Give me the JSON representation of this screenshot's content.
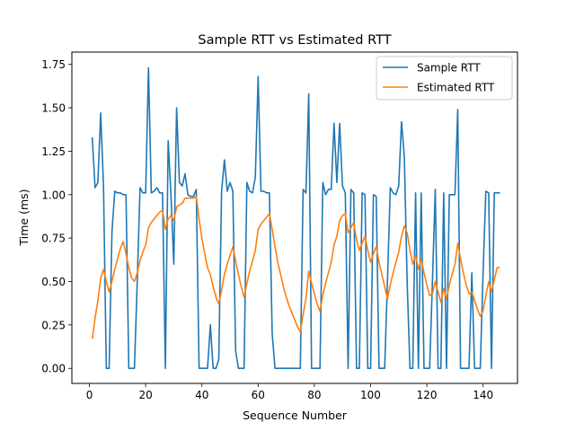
{
  "chart_data": {
    "type": "line",
    "title": "Sample RTT vs Estimated RTT",
    "xlabel": "Sequence Number",
    "ylabel": "Time (ms)",
    "xlim": [
      -6.25,
      152.25
    ],
    "ylim": [
      -0.0867,
      1.8207
    ],
    "xticks": [
      0,
      20,
      40,
      60,
      80,
      100,
      120,
      140
    ],
    "yticks": [
      0.0,
      0.25,
      0.5,
      0.75,
      1.0,
      1.25,
      1.5,
      1.75
    ],
    "ytick_labels": [
      "0.00",
      "0.25",
      "0.50",
      "0.75",
      "1.00",
      "1.25",
      "1.50",
      "1.75"
    ],
    "grid": false,
    "legend_position": "top-right",
    "x": [
      1,
      2,
      3,
      4,
      5,
      6,
      7,
      8,
      9,
      10,
      11,
      12,
      13,
      14,
      15,
      16,
      17,
      18,
      19,
      20,
      21,
      22,
      23,
      24,
      25,
      26,
      27,
      28,
      29,
      30,
      31,
      32,
      33,
      34,
      35,
      36,
      37,
      38,
      39,
      40,
      41,
      42,
      43,
      44,
      45,
      46,
      47,
      48,
      49,
      50,
      51,
      52,
      53,
      54,
      55,
      56,
      57,
      58,
      59,
      60,
      61,
      62,
      63,
      64,
      65,
      66,
      67,
      68,
      69,
      70,
      71,
      72,
      73,
      74,
      75,
      76,
      77,
      78,
      79,
      80,
      81,
      82,
      83,
      84,
      85,
      86,
      87,
      88,
      89,
      90,
      91,
      92,
      93,
      94,
      95,
      96,
      97,
      98,
      99,
      100,
      101,
      102,
      103,
      104,
      105,
      106,
      107,
      108,
      109,
      110,
      111,
      112,
      113,
      114,
      115,
      116,
      117,
      118,
      119,
      120,
      121,
      122,
      123,
      124,
      125,
      126,
      127,
      128,
      129,
      130,
      131,
      132,
      133,
      134,
      135,
      136,
      137,
      138,
      139,
      140,
      141,
      142,
      143,
      144,
      145,
      146
    ],
    "series": [
      {
        "name": "Sample RTT",
        "color": "#1f77b4",
        "values": [
          1.33,
          1.04,
          1.07,
          1.47,
          1.05,
          0.0,
          0.0,
          0.78,
          1.02,
          1.01,
          1.01,
          1.0,
          1.0,
          0.0,
          0.0,
          0.0,
          0.5,
          1.04,
          1.01,
          1.01,
          1.73,
          1.01,
          1.02,
          1.04,
          1.01,
          1.01,
          0.0,
          1.31,
          1.0,
          0.6,
          1.5,
          1.07,
          1.05,
          1.12,
          1.0,
          0.99,
          0.99,
          1.03,
          0.0,
          0.0,
          0.0,
          0.0,
          0.25,
          0.0,
          0.0,
          0.05,
          1.02,
          1.2,
          1.02,
          1.07,
          1.02,
          0.1,
          0.0,
          0.0,
          0.0,
          1.07,
          1.02,
          1.01,
          1.1,
          1.68,
          1.02,
          1.02,
          1.01,
          1.01,
          0.2,
          0.0,
          0.0,
          0.0,
          0.0,
          0.0,
          0.0,
          0.0,
          0.0,
          0.0,
          0.0,
          1.03,
          1.01,
          1.58,
          0.0,
          0.0,
          0.0,
          0.0,
          1.07,
          1.0,
          1.03,
          1.03,
          1.41,
          1.07,
          1.41,
          1.05,
          1.01,
          0.0,
          1.03,
          1.01,
          0.0,
          0.0,
          1.01,
          1.0,
          0.0,
          0.0,
          1.0,
          0.99,
          0.0,
          0.0,
          0.0,
          0.5,
          1.04,
          1.01,
          1.0,
          1.05,
          1.42,
          1.22,
          0.5,
          0.0,
          0.0,
          1.01,
          0.0,
          1.01,
          0.0,
          0.0,
          0.0,
          0.5,
          1.03,
          0.0,
          0.0,
          1.01,
          0.0,
          1.0,
          1.0,
          1.0,
          1.49,
          0.0,
          0.0,
          0.0,
          0.0,
          0.55,
          0.0,
          0.0,
          0.0,
          0.55,
          1.02,
          1.01,
          0.0,
          1.01,
          1.01,
          1.01
        ]
      },
      {
        "name": "Estimated RTT",
        "color": "#ff7f0e",
        "values": [
          0.17,
          0.29,
          0.39,
          0.52,
          0.57,
          0.5,
          0.44,
          0.5,
          0.57,
          0.63,
          0.69,
          0.73,
          0.66,
          0.58,
          0.52,
          0.5,
          0.55,
          0.62,
          0.67,
          0.71,
          0.81,
          0.84,
          0.86,
          0.88,
          0.9,
          0.91,
          0.8,
          0.86,
          0.88,
          0.85,
          0.93,
          0.94,
          0.95,
          0.98,
          0.98,
          0.98,
          0.98,
          0.99,
          0.86,
          0.75,
          0.66,
          0.58,
          0.54,
          0.47,
          0.41,
          0.37,
          0.45,
          0.54,
          0.6,
          0.65,
          0.7,
          0.62,
          0.54,
          0.47,
          0.41,
          0.49,
          0.56,
          0.62,
          0.68,
          0.8,
          0.83,
          0.85,
          0.87,
          0.89,
          0.8,
          0.7,
          0.61,
          0.54,
          0.47,
          0.41,
          0.36,
          0.32,
          0.28,
          0.24,
          0.21,
          0.31,
          0.4,
          0.56,
          0.49,
          0.43,
          0.37,
          0.33,
          0.42,
          0.49,
          0.55,
          0.61,
          0.71,
          0.76,
          0.85,
          0.88,
          0.89,
          0.78,
          0.81,
          0.84,
          0.74,
          0.68,
          0.72,
          0.76,
          0.68,
          0.61,
          0.66,
          0.7,
          0.61,
          0.54,
          0.47,
          0.4,
          0.48,
          0.55,
          0.61,
          0.67,
          0.76,
          0.82,
          0.78,
          0.68,
          0.6,
          0.65,
          0.57,
          0.63,
          0.55,
          0.48,
          0.42,
          0.43,
          0.5,
          0.44,
          0.38,
          0.46,
          0.4,
          0.48,
          0.54,
          0.6,
          0.72,
          0.63,
          0.55,
          0.48,
          0.43,
          0.44,
          0.39,
          0.34,
          0.3,
          0.33,
          0.42,
          0.5,
          0.44,
          0.51,
          0.58,
          0.58
        ]
      }
    ]
  }
}
